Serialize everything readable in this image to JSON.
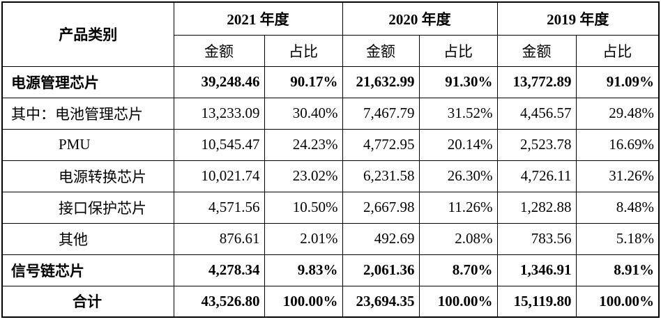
{
  "header": {
    "category": "产品类别",
    "years": [
      "2021 年度",
      "2020 年度",
      "2019 年度"
    ],
    "amount": "金额",
    "ratio": "占比"
  },
  "rows": [
    {
      "label": "电源管理芯片",
      "bold": true,
      "indent": 1,
      "values": [
        "39,248.46",
        "90.17%",
        "21,632.99",
        "91.30%",
        "13,772.89",
        "91.09%"
      ]
    },
    {
      "label": "其中：电池管理芯片",
      "bold": false,
      "indent": 1,
      "values": [
        "13,233.09",
        "30.40%",
        "7,467.79",
        "31.52%",
        "4,456.57",
        "29.48%"
      ]
    },
    {
      "label": "PMU",
      "bold": false,
      "indent": 2,
      "values": [
        "10,545.47",
        "24.23%",
        "4,772.95",
        "20.14%",
        "2,523.78",
        "16.69%"
      ]
    },
    {
      "label": "电源转换芯片",
      "bold": false,
      "indent": 2,
      "values": [
        "10,021.74",
        "23.02%",
        "6,231.58",
        "26.30%",
        "4,726.11",
        "31.26%"
      ]
    },
    {
      "label": "接口保护芯片",
      "bold": false,
      "indent": 2,
      "values": [
        "4,571.56",
        "10.50%",
        "2,667.98",
        "11.26%",
        "1,282.88",
        "8.48%"
      ]
    },
    {
      "label": "其他",
      "bold": false,
      "indent": 2,
      "values": [
        "876.61",
        "2.01%",
        "492.69",
        "2.08%",
        "783.56",
        "5.18%"
      ]
    },
    {
      "label": "信号链芯片",
      "bold": true,
      "indent": 1,
      "values": [
        "4,278.34",
        "9.83%",
        "2,061.36",
        "8.70%",
        "1,346.91",
        "8.91%"
      ]
    },
    {
      "label": "合计",
      "bold": true,
      "indent": 3,
      "values": [
        "43,526.80",
        "100.00%",
        "23,694.35",
        "100.00%",
        "15,119.80",
        "100.00%"
      ]
    }
  ]
}
